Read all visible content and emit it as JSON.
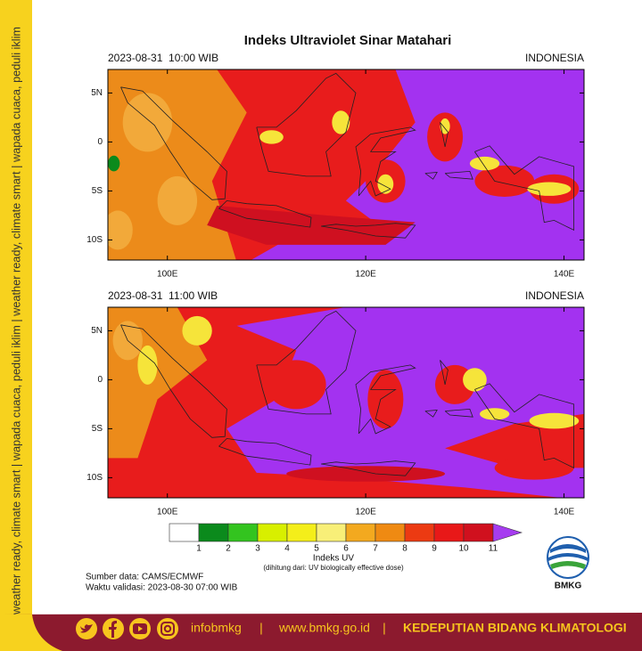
{
  "side_text": "weather ready, climate smart | wapada cuaca, peduli iklim | weather ready, climate smart | wapada cuaca, peduli iklim",
  "title": "Indeks Ultraviolet Sinar Matahari",
  "panels": [
    {
      "timestamp": "2023-08-31  10:00 WIB",
      "region": "INDONESIA",
      "lat_labels": [
        "5N",
        "0",
        "5S",
        "10S"
      ],
      "lon_labels": [
        "100E",
        "120E",
        "140E"
      ]
    },
    {
      "timestamp": "2023-08-31  11:00 WIB",
      "region": "INDONESIA",
      "lat_labels": [
        "5N",
        "0",
        "5S",
        "10S"
      ],
      "lon_labels": [
        "100E",
        "120E",
        "140E"
      ]
    }
  ],
  "colorbar": {
    "labels": [
      1,
      2,
      3,
      4,
      5,
      6,
      7,
      8,
      9,
      10,
      11
    ],
    "colors": [
      "#ffffff",
      "#0b8a1c",
      "#33c41f",
      "#d8ef00",
      "#f4ee1a",
      "#f8ef78",
      "#f3a91f",
      "#ef8a12",
      "#ec3a12",
      "#e81818",
      "#d0101e"
    ],
    "over_color": "#a63cf0",
    "title": "Indeks UV",
    "note": "(dihitung dari: UV biologically effective dose)"
  },
  "source": "Sumber data: CAMS/ECMWF",
  "validity": "Waktu validasi: 2023-08-30 07:00 WIB",
  "logo": "BMKG",
  "footer": {
    "handle": "infobmkg",
    "separator": "|",
    "url": "www.bmkg.go.id",
    "department": "KEDEPUTIAN BIDANG KLIMATOLOGI"
  }
}
